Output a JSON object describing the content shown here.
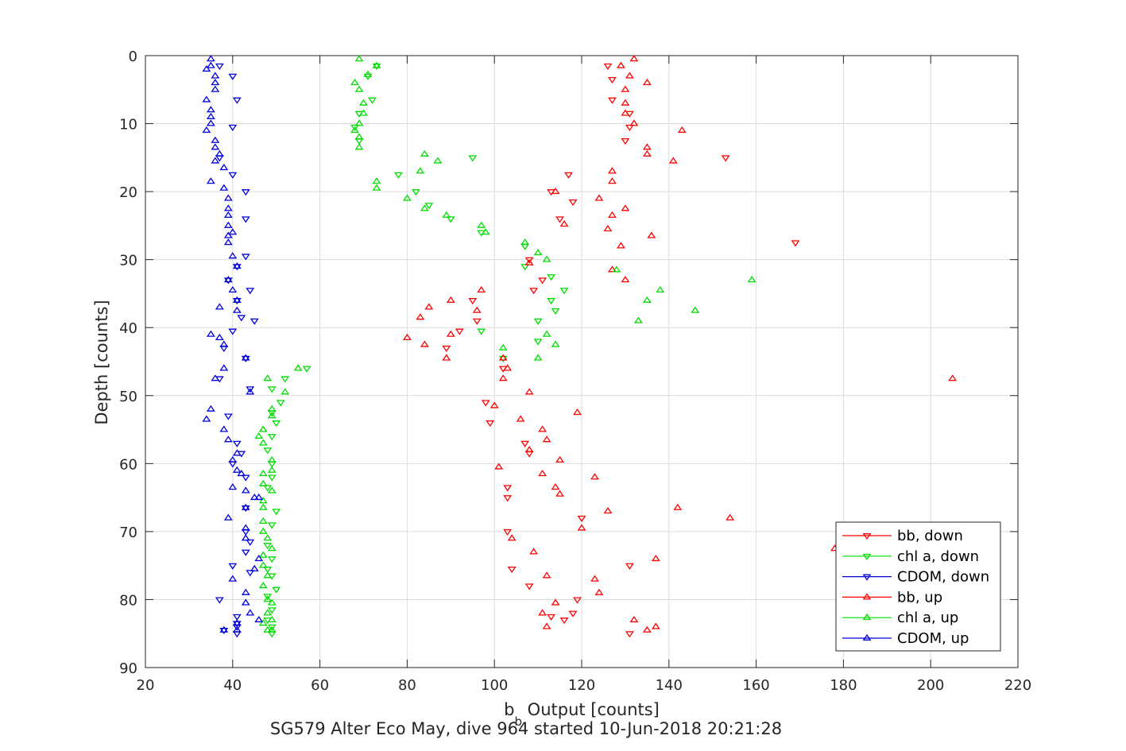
{
  "chart_data": {
    "type": "scatter",
    "title": "SG579 Alter Eco May, dive 964 started 10-Jun-2018 20:21:28",
    "xlabel_main": "b",
    "xlabel_sub": "b",
    "xlabel_rest": " Output [counts]",
    "ylabel": "Depth [counts]",
    "xlim": [
      20,
      220
    ],
    "ylim": [
      0,
      90
    ],
    "y_reversed": true,
    "grid": true,
    "legend_position": "bottom-right",
    "xticks": [
      20,
      40,
      60,
      80,
      100,
      120,
      140,
      160,
      180,
      200,
      220
    ],
    "yticks": [
      0,
      10,
      20,
      30,
      40,
      50,
      60,
      70,
      80,
      90
    ],
    "series": [
      {
        "name": "bb, down",
        "color": "#ff0000",
        "marker": "triangle-down",
        "points": [
          [
            126,
            1.5
          ],
          [
            127,
            3.5
          ],
          [
            127,
            6.5
          ],
          [
            131,
            8.5
          ],
          [
            131,
            10.5
          ],
          [
            130,
            12.5
          ],
          [
            153,
            15
          ],
          [
            117,
            17.5
          ],
          [
            113,
            20
          ],
          [
            118,
            21.5
          ],
          [
            115,
            24
          ],
          [
            169,
            27.5
          ],
          [
            108,
            30
          ],
          [
            111,
            33
          ],
          [
            109,
            34.5
          ],
          [
            95,
            36
          ],
          [
            96,
            39
          ],
          [
            92,
            40.5
          ],
          [
            89,
            43
          ],
          [
            102,
            46
          ],
          [
            98,
            51
          ],
          [
            99,
            54
          ],
          [
            107,
            57
          ],
          [
            108,
            58.5
          ],
          [
            103,
            63.5
          ],
          [
            103,
            65
          ],
          [
            103,
            70
          ],
          [
            120,
            68
          ],
          [
            104,
            75.5
          ],
          [
            108,
            78
          ],
          [
            113,
            82.5
          ],
          [
            118,
            82
          ],
          [
            116,
            83
          ],
          [
            119,
            80
          ],
          [
            131,
            75
          ],
          [
            131,
            85
          ]
        ]
      },
      {
        "name": "chl a, down",
        "color": "#00dd00",
        "marker": "triangle-down",
        "points": [
          [
            73,
            1.5
          ],
          [
            71,
            3
          ],
          [
            72,
            6.5
          ],
          [
            69,
            8.5
          ],
          [
            68,
            10.5
          ],
          [
            69,
            12.5
          ],
          [
            95,
            15
          ],
          [
            78,
            17.5
          ],
          [
            82,
            20
          ],
          [
            85,
            22
          ],
          [
            90,
            24
          ],
          [
            97,
            26
          ],
          [
            107,
            28
          ],
          [
            107,
            31
          ],
          [
            113,
            32.5
          ],
          [
            116,
            34.5
          ],
          [
            113,
            36
          ],
          [
            114,
            37.5
          ],
          [
            110,
            39
          ],
          [
            97,
            40.5
          ],
          [
            110,
            42
          ],
          [
            102,
            44.5
          ],
          [
            57,
            46
          ],
          [
            52,
            47.5
          ],
          [
            49,
            49
          ],
          [
            51,
            51
          ],
          [
            49,
            52.5
          ],
          [
            50,
            54
          ],
          [
            49,
            56
          ],
          [
            48,
            58
          ],
          [
            49,
            60
          ],
          [
            49,
            62
          ],
          [
            48,
            63.5
          ],
          [
            50,
            67
          ],
          [
            49,
            69
          ],
          [
            48,
            72
          ],
          [
            49,
            74
          ],
          [
            48,
            75.5
          ],
          [
            49,
            76.5
          ],
          [
            50,
            78.5
          ],
          [
            48,
            79.5
          ],
          [
            49,
            81.5
          ],
          [
            48,
            83
          ],
          [
            49,
            84
          ],
          [
            49,
            85
          ]
        ]
      },
      {
        "name": "CDOM, down",
        "color": "#0000dd",
        "marker": "triangle-down",
        "points": [
          [
            37,
            1.5
          ],
          [
            40,
            3
          ],
          [
            41,
            6.5
          ],
          [
            40,
            10.5
          ],
          [
            37,
            15
          ],
          [
            40,
            17.5
          ],
          [
            43,
            20
          ],
          [
            43,
            24
          ],
          [
            43,
            29.5
          ],
          [
            41,
            31
          ],
          [
            39,
            33
          ],
          [
            44,
            34.5
          ],
          [
            41,
            36
          ],
          [
            42,
            38.5
          ],
          [
            45,
            39
          ],
          [
            40,
            40.5
          ],
          [
            38,
            43
          ],
          [
            43,
            44.5
          ],
          [
            37,
            47.5
          ],
          [
            44,
            49
          ],
          [
            39,
            53
          ],
          [
            41,
            57
          ],
          [
            42,
            58.5
          ],
          [
            40,
            60
          ],
          [
            43,
            62
          ],
          [
            43,
            66.5
          ],
          [
            43,
            70
          ],
          [
            44,
            71.5
          ],
          [
            43,
            73
          ],
          [
            40,
            75
          ],
          [
            44,
            76
          ],
          [
            37,
            80
          ],
          [
            41,
            82.5
          ],
          [
            41,
            83.5
          ],
          [
            41,
            84
          ],
          [
            41,
            85
          ],
          [
            38,
            84.5
          ]
        ]
      },
      {
        "name": "bb, up",
        "color": "#ff0000",
        "marker": "triangle-up",
        "points": [
          [
            132,
            0.5
          ],
          [
            129,
            1.5
          ],
          [
            131,
            3
          ],
          [
            135,
            4
          ],
          [
            130,
            5
          ],
          [
            130,
            7
          ],
          [
            130,
            8.5
          ],
          [
            132,
            10
          ],
          [
            143,
            11
          ],
          [
            135,
            13.5
          ],
          [
            135,
            14.5
          ],
          [
            141,
            15.5
          ],
          [
            127,
            17
          ],
          [
            127,
            18.5
          ],
          [
            114,
            20
          ],
          [
            124,
            21
          ],
          [
            130,
            22.5
          ],
          [
            127,
            23.5
          ],
          [
            126,
            25.5
          ],
          [
            116,
            24.8
          ],
          [
            136,
            26.5
          ],
          [
            129,
            28
          ],
          [
            108,
            30.5
          ],
          [
            127,
            31.5
          ],
          [
            130,
            33
          ],
          [
            97,
            34.5
          ],
          [
            90,
            36
          ],
          [
            85,
            37
          ],
          [
            96,
            37.5
          ],
          [
            83,
            38.5
          ],
          [
            90,
            41
          ],
          [
            80,
            41.5
          ],
          [
            84,
            42.5
          ],
          [
            89,
            44.5
          ],
          [
            102,
            44.5
          ],
          [
            103,
            46
          ],
          [
            102,
            47.5
          ],
          [
            205,
            47.5
          ],
          [
            108,
            49.5
          ],
          [
            100,
            51.5
          ],
          [
            119,
            52.5
          ],
          [
            106,
            53.5
          ],
          [
            111,
            55
          ],
          [
            112,
            56.5
          ],
          [
            108,
            58
          ],
          [
            115,
            59.5
          ],
          [
            101,
            60.5
          ],
          [
            111,
            61.5
          ],
          [
            123,
            62
          ],
          [
            114,
            63.5
          ],
          [
            115,
            64.5
          ],
          [
            142,
            66.5
          ],
          [
            126,
            67
          ],
          [
            154,
            68
          ],
          [
            120,
            69.5
          ],
          [
            104,
            71
          ],
          [
            109,
            73
          ],
          [
            178,
            72.5
          ],
          [
            137,
            74
          ],
          [
            112,
            76.5
          ],
          [
            123,
            77
          ],
          [
            124,
            79
          ],
          [
            114,
            80.5
          ],
          [
            111,
            82
          ],
          [
            132,
            83
          ],
          [
            137,
            84
          ],
          [
            135,
            84.5
          ],
          [
            112,
            84
          ]
        ]
      },
      {
        "name": "chl a, up",
        "color": "#00dd00",
        "marker": "triangle-up",
        "points": [
          [
            69,
            0.5
          ],
          [
            73,
            1.5
          ],
          [
            71,
            2.8
          ],
          [
            68,
            4
          ],
          [
            69,
            5
          ],
          [
            70,
            7
          ],
          [
            70,
            8.5
          ],
          [
            69,
            10
          ],
          [
            68,
            11
          ],
          [
            69,
            12
          ],
          [
            69,
            13.5
          ],
          [
            84,
            14.5
          ],
          [
            87,
            15.5
          ],
          [
            83,
            17
          ],
          [
            73,
            18.5
          ],
          [
            73,
            19.5
          ],
          [
            80,
            21
          ],
          [
            84,
            22.5
          ],
          [
            89,
            23.5
          ],
          [
            97,
            25
          ],
          [
            98,
            26
          ],
          [
            107,
            27.5
          ],
          [
            110,
            29
          ],
          [
            112,
            30
          ],
          [
            128,
            31.5
          ],
          [
            159,
            33
          ],
          [
            138,
            34.5
          ],
          [
            135,
            36
          ],
          [
            146,
            37.5
          ],
          [
            133,
            39
          ],
          [
            102,
            43
          ],
          [
            114,
            42.5
          ],
          [
            112,
            41
          ],
          [
            110,
            44.5
          ],
          [
            55,
            46
          ],
          [
            48,
            47.5
          ],
          [
            52,
            49.5
          ],
          [
            49,
            52
          ],
          [
            49,
            53
          ],
          [
            47,
            55
          ],
          [
            46,
            56
          ],
          [
            47,
            57
          ],
          [
            49,
            59.5
          ],
          [
            49,
            61
          ],
          [
            47,
            61.5
          ],
          [
            47,
            63
          ],
          [
            49,
            64
          ],
          [
            47,
            65.5
          ],
          [
            47,
            66.5
          ],
          [
            47,
            68.5
          ],
          [
            47,
            70
          ],
          [
            48,
            71
          ],
          [
            49,
            72.5
          ],
          [
            47,
            73.5
          ],
          [
            47,
            75
          ],
          [
            48,
            76.5
          ],
          [
            47,
            78
          ],
          [
            48,
            80
          ],
          [
            49,
            80.5
          ],
          [
            48,
            82
          ],
          [
            49,
            83
          ],
          [
            47,
            83.5
          ],
          [
            48,
            84.5
          ],
          [
            49,
            84.5
          ]
        ]
      },
      {
        "name": "CDOM, up",
        "color": "#0000dd",
        "marker": "triangle-up",
        "points": [
          [
            35,
            0.5
          ],
          [
            35,
            1.5
          ],
          [
            34,
            2
          ],
          [
            36,
            3
          ],
          [
            36,
            4
          ],
          [
            36,
            5
          ],
          [
            34,
            6.5
          ],
          [
            35,
            8
          ],
          [
            35,
            9
          ],
          [
            35,
            10
          ],
          [
            34,
            11
          ],
          [
            36,
            12.5
          ],
          [
            36,
            13.5
          ],
          [
            37,
            14.5
          ],
          [
            36,
            15.5
          ],
          [
            38,
            16.5
          ],
          [
            35,
            18.5
          ],
          [
            38,
            19.5
          ],
          [
            39,
            21
          ],
          [
            39,
            22.5
          ],
          [
            39,
            23.5
          ],
          [
            39,
            25
          ],
          [
            40,
            26
          ],
          [
            39,
            26.5
          ],
          [
            39,
            27.5
          ],
          [
            40,
            29.5
          ],
          [
            41,
            31
          ],
          [
            39,
            33
          ],
          [
            40,
            34.5
          ],
          [
            41,
            36
          ],
          [
            37,
            37
          ],
          [
            41,
            37.5
          ],
          [
            35,
            41
          ],
          [
            37,
            41.5
          ],
          [
            38,
            42.5
          ],
          [
            43,
            44.5
          ],
          [
            38,
            46
          ],
          [
            36,
            47.5
          ],
          [
            44,
            49.5
          ],
          [
            35,
            52
          ],
          [
            34,
            53.5
          ],
          [
            38,
            55
          ],
          [
            39,
            56.5
          ],
          [
            41,
            58.5
          ],
          [
            40,
            59.5
          ],
          [
            41,
            61
          ],
          [
            42,
            61.5
          ],
          [
            40,
            63.5
          ],
          [
            43,
            64
          ],
          [
            45,
            65
          ],
          [
            46,
            65
          ],
          [
            43,
            66.5
          ],
          [
            39,
            68
          ],
          [
            43,
            69.5
          ],
          [
            43,
            71
          ],
          [
            46,
            74
          ],
          [
            45,
            75.5
          ],
          [
            40,
            77
          ],
          [
            43,
            79
          ],
          [
            43,
            80.5
          ],
          [
            44,
            82
          ],
          [
            46,
            83
          ],
          [
            41,
            83.5
          ],
          [
            41,
            84.5
          ],
          [
            38,
            84.5
          ]
        ]
      }
    ]
  }
}
